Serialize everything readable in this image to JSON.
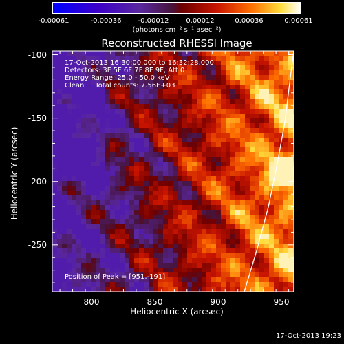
{
  "colorbar": {
    "tick_labels": [
      "-0.00061",
      "-0.00036",
      "-0.00012",
      "0.00012",
      "0.00036",
      "0.00061"
    ],
    "min": -0.00061,
    "max": 0.00061,
    "unit_label": "(photons cm⁻² s⁻¹ asec⁻²)"
  },
  "chart_data": {
    "type": "heatmap",
    "title": "Reconstructed RHESSI Image",
    "xlabel": "Heliocentric X (arcsec)",
    "ylabel": "Heliocentric Y (arcsec)",
    "xlim": [
      769,
      959
    ],
    "ylim": [
      -287,
      -97
    ],
    "x_ticks": [
      800,
      850,
      900,
      950
    ],
    "y_ticks": [
      -100,
      -150,
      -200,
      -250
    ],
    "grid": false,
    "colormap": "rhessi thermal (blue-purple-red-orange-yellow-white)",
    "annotations": [
      "17-Oct-2013 16:30:00.000 to 16:32:28.000",
      "Detectors: 3F 5F 6F 7F 8F 9F, Att 0",
      "Energy Range: 25.0 - 50.0 keV",
      "Clean     Total counts: 7.56E+03"
    ],
    "peak_label": "Position of Peak = [951,-191]",
    "peak": [
      951,
      -191
    ],
    "limb_curve": [
      [
        920,
        -287
      ],
      [
        930,
        -254
      ],
      [
        939,
        -220
      ],
      [
        946,
        -186
      ],
      [
        952,
        -153
      ],
      [
        956,
        -120
      ],
      [
        959,
        -97
      ]
    ]
  },
  "footer_timestamp": "17-Oct-2013 19:23"
}
